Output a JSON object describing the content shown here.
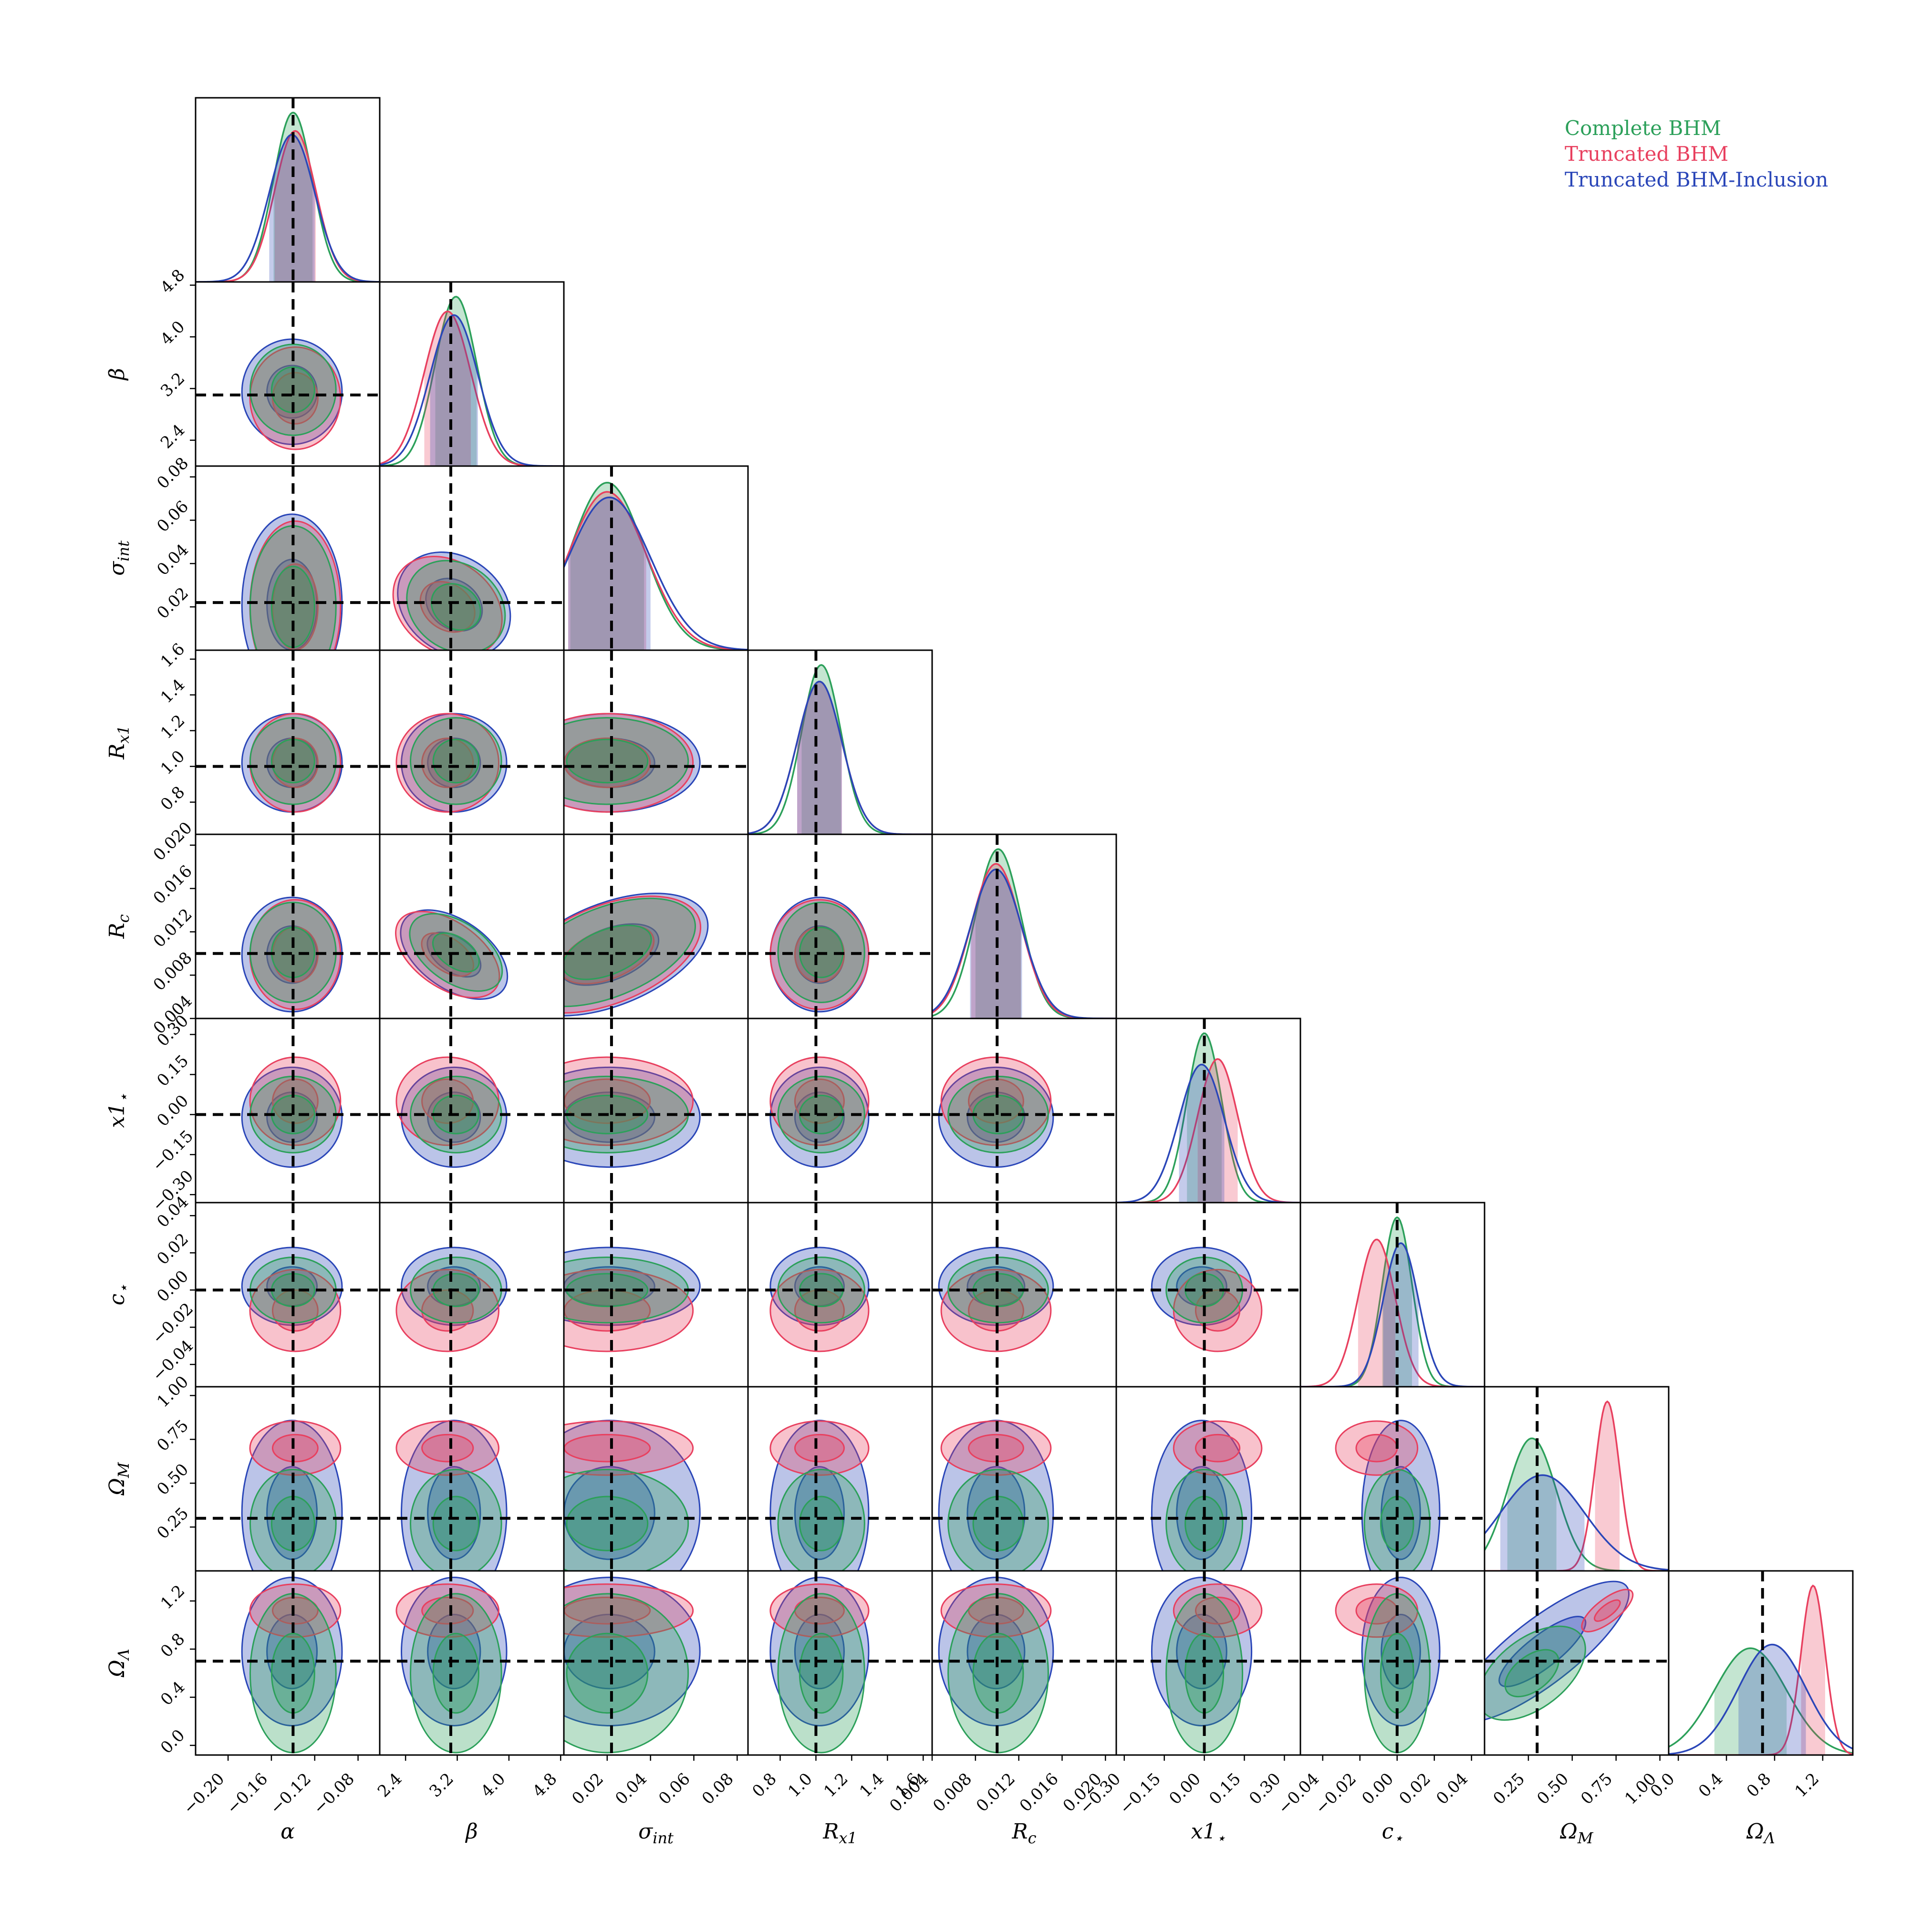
{
  "chart_data": {
    "type": "corner",
    "legend": {
      "placement": "top-right",
      "entries": [
        {
          "label": "Complete BHM",
          "color": "#2ca05a"
        },
        {
          "label": "Truncated BHM",
          "color": "#e8405f"
        },
        {
          "label": "Truncated BHM-Inclusion",
          "color": "#2a46b8"
        }
      ]
    },
    "parameters": [
      {
        "label": "α",
        "sub": "",
        "range": [
          -0.23,
          -0.06
        ],
        "ticks": [
          -0.2,
          -0.16,
          -0.12,
          -0.08
        ],
        "tick_labels": [
          "−0.20",
          "−0.16",
          "−0.12",
          "−0.08"
        ],
        "truth": -0.14
      },
      {
        "label": "β",
        "sub": "",
        "range": [
          2.0,
          4.85
        ],
        "ticks": [
          2.4,
          3.2,
          4.0,
          4.8
        ],
        "tick_labels": [
          "2.4",
          "3.2",
          "4.0",
          "4.8"
        ],
        "truth": 3.1
      },
      {
        "label": "σ",
        "sub": "int",
        "range": [
          0.0,
          0.085
        ],
        "ticks": [
          0.02,
          0.04,
          0.06,
          0.08
        ],
        "tick_labels": [
          "0.02",
          "0.04",
          "0.06",
          "0.08"
        ],
        "truth": 0.022
      },
      {
        "label": "R",
        "sub": "x1",
        "range": [
          0.62,
          1.65
        ],
        "ticks": [
          0.8,
          1.0,
          1.2,
          1.4,
          1.6
        ],
        "tick_labels": [
          "0.8",
          "1.0",
          "1.2",
          "1.4",
          "1.6"
        ],
        "truth": 1.0
      },
      {
        "label": "R",
        "sub": "c",
        "range": [
          0.004,
          0.021
        ],
        "ticks": [
          0.004,
          0.008,
          0.012,
          0.016,
          0.02
        ],
        "tick_labels": [
          "0.004",
          "0.008",
          "0.012",
          "0.016",
          "0.020"
        ],
        "truth": 0.01
      },
      {
        "label": "x1",
        "sub": "⋆",
        "range": [
          -0.33,
          0.36
        ],
        "ticks": [
          -0.3,
          -0.15,
          0.0,
          0.15,
          0.3
        ],
        "tick_labels": [
          "−0.30",
          "−0.15",
          "0.00",
          "0.15",
          "0.30"
        ],
        "truth": 0.0
      },
      {
        "label": "c",
        "sub": "⋆",
        "range": [
          -0.052,
          0.047
        ],
        "ticks": [
          -0.04,
          -0.02,
          0.0,
          0.02,
          0.04
        ],
        "tick_labels": [
          "−0.04",
          "−0.02",
          "0.00",
          "0.02",
          "0.04"
        ],
        "truth": 0.0
      },
      {
        "label": "Ω",
        "sub": "M",
        "range": [
          0.0,
          1.05
        ],
        "ticks": [
          0.25,
          0.5,
          0.75,
          1.0
        ],
        "tick_labels": [
          "0.25",
          "0.50",
          "0.75",
          "1.00"
        ],
        "truth": 0.3
      },
      {
        "label": "Ω",
        "sub": "Λ",
        "range": [
          -0.08,
          1.45
        ],
        "ticks": [
          0.0,
          0.4,
          0.8,
          1.2
        ],
        "tick_labels": [
          "0.0",
          "0.4",
          "0.8",
          "1.2"
        ],
        "truth": 0.7
      }
    ],
    "marginals": [
      {
        "param": "α",
        "series": [
          {
            "name": "Complete BHM",
            "mean": -0.14,
            "sd": 0.018,
            "peak": 0.92
          },
          {
            "name": "Truncated BHM",
            "mean": -0.138,
            "sd": 0.019,
            "peak": 0.82
          },
          {
            "name": "Truncated BHM-Inclusion",
            "mean": -0.141,
            "sd": 0.021,
            "peak": 0.8
          }
        ]
      },
      {
        "param": "β",
        "series": [
          {
            "name": "Complete BHM",
            "mean": 3.18,
            "sd": 0.32,
            "peak": 0.92
          },
          {
            "name": "Truncated BHM",
            "mean": 3.05,
            "sd": 0.36,
            "peak": 0.84
          },
          {
            "name": "Truncated BHM-Inclusion",
            "mean": 3.15,
            "sd": 0.37,
            "peak": 0.82
          }
        ]
      },
      {
        "param": "σ int",
        "series": [
          {
            "name": "Complete BHM",
            "mean": 0.02,
            "sd": 0.017,
            "peak": 0.91
          },
          {
            "name": "Truncated BHM",
            "mean": 0.02,
            "sd": 0.018,
            "peak": 0.86
          },
          {
            "name": "Truncated BHM-Inclusion",
            "mean": 0.021,
            "sd": 0.019,
            "peak": 0.83
          }
        ]
      },
      {
        "param": "R x1",
        "series": [
          {
            "name": "Complete BHM",
            "mean": 1.03,
            "sd": 0.11,
            "peak": 0.92
          },
          {
            "name": "Truncated BHM",
            "mean": 1.02,
            "sd": 0.125,
            "peak": 0.83
          },
          {
            "name": "Truncated BHM-Inclusion",
            "mean": 1.02,
            "sd": 0.125,
            "peak": 0.83
          }
        ]
      },
      {
        "param": "R c",
        "series": [
          {
            "name": "Complete BHM",
            "mean": 0.0101,
            "sd": 0.0021,
            "peak": 0.92
          },
          {
            "name": "Truncated BHM",
            "mean": 0.0099,
            "sd": 0.0023,
            "peak": 0.84
          },
          {
            "name": "Truncated BHM-Inclusion",
            "mean": 0.0099,
            "sd": 0.0024,
            "peak": 0.81
          }
        ]
      },
      {
        "param": "x1 ⋆",
        "series": [
          {
            "name": "Complete BHM",
            "mean": 0.0,
            "sd": 0.065,
            "peak": 0.92
          },
          {
            "name": "Truncated BHM",
            "mean": 0.05,
            "sd": 0.075,
            "peak": 0.78
          },
          {
            "name": "Truncated BHM-Inclusion",
            "mean": -0.01,
            "sd": 0.085,
            "peak": 0.75
          }
        ]
      },
      {
        "param": "c ⋆",
        "series": [
          {
            "name": "Complete BHM",
            "mean": 0.0,
            "sd": 0.008,
            "peak": 0.92
          },
          {
            "name": "Truncated BHM",
            "mean": -0.011,
            "sd": 0.01,
            "peak": 0.8
          },
          {
            "name": "Truncated BHM-Inclusion",
            "mean": 0.002,
            "sd": 0.0095,
            "peak": 0.78
          }
        ]
      },
      {
        "param": "Ω M",
        "series": [
          {
            "name": "Complete BHM",
            "mean": 0.27,
            "sd": 0.14,
            "peak": 0.72
          },
          {
            "name": "Truncated BHM",
            "mean": 0.7,
            "sd": 0.07,
            "peak": 0.92
          },
          {
            "name": "Truncated BHM-Inclusion",
            "mean": 0.33,
            "sd": 0.24,
            "peak": 0.52
          }
        ]
      },
      {
        "param": "Ω Λ",
        "series": [
          {
            "name": "Complete BHM",
            "mean": 0.6,
            "sd": 0.3,
            "peak": 0.58
          },
          {
            "name": "Truncated BHM",
            "mean": 1.12,
            "sd": 0.1,
            "peak": 0.92
          },
          {
            "name": "Truncated BHM-Inclusion",
            "mean": 0.78,
            "sd": 0.28,
            "peak": 0.6
          }
        ]
      }
    ],
    "joint_features": {
      "correlations": [
        {
          "pair": [
            "β",
            "σ int"
          ],
          "rho": -0.85
        },
        {
          "pair": [
            "β",
            "R c"
          ],
          "rho": -0.8
        },
        {
          "pair": [
            "σ int",
            "R c"
          ],
          "rho": 0.45
        },
        {
          "pair": [
            "Ω M",
            "Ω Λ"
          ],
          "rho": 0.9
        }
      ]
    },
    "grid": false
  }
}
